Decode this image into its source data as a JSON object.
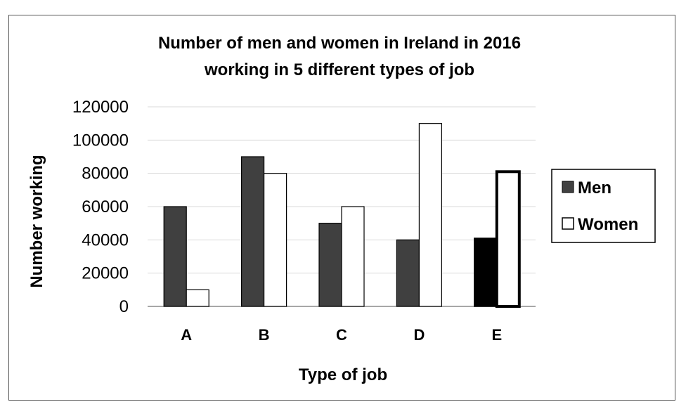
{
  "chart_data": {
    "type": "bar",
    "title_lines": [
      "Number of men and women in Ireland in 2016",
      "working in 5 different types of job"
    ],
    "xlabel": "Type of job",
    "ylabel": "Number working",
    "categories": [
      "A",
      "B",
      "C",
      "D",
      "E"
    ],
    "ylim": [
      0,
      120000
    ],
    "yticks": [
      "0",
      "20000",
      "40000",
      "60000",
      "80000",
      "100000",
      "120000"
    ],
    "grid": true,
    "legend_position": "right",
    "series": [
      {
        "name": "Men",
        "values": [
          60000,
          90000,
          50000,
          40000,
          41000
        ],
        "color": "#404040",
        "highlight_color": "#000000"
      },
      {
        "name": "Women",
        "values": [
          10000,
          80000,
          60000,
          110000,
          81000
        ],
        "color": "#ffffff",
        "highlight_color": "#ffffff"
      }
    ],
    "highlighted_category": "E"
  }
}
